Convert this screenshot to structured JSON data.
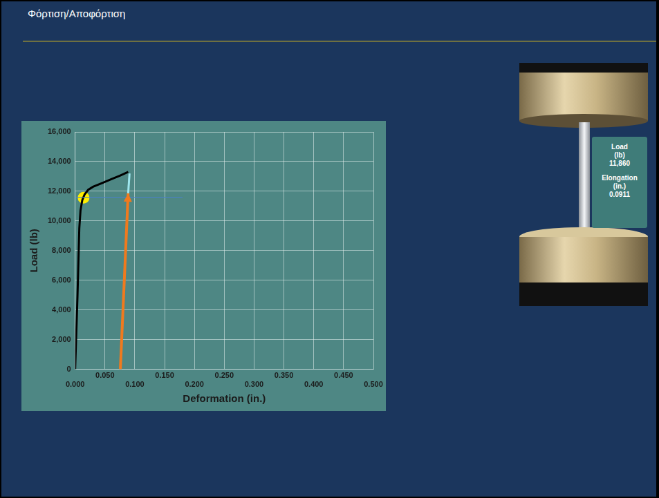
{
  "header": {
    "title": "Φόρτιση/Αποφόρτιση"
  },
  "readout": [
    {
      "label": "Load",
      "unit": "(lb)",
      "value": "11,860"
    },
    {
      "label": "Elongation",
      "unit": "(in.)",
      "value": "0.0911"
    }
  ],
  "chart_data": {
    "type": "line",
    "x_label": "Deformation (in.)",
    "y_label": "Load (lb)",
    "xlim": [
      0,
      0.5
    ],
    "xticks": [
      {
        "value": 0,
        "label": "0.000"
      },
      {
        "value": 0.05,
        "label": "0.050"
      },
      {
        "value": 0.1,
        "label": "0.100"
      },
      {
        "value": 0.15,
        "label": "0.150"
      },
      {
        "value": 0.2,
        "label": "0.200"
      },
      {
        "value": 0.25,
        "label": "0.250"
      },
      {
        "value": 0.3,
        "label": "0.300"
      },
      {
        "value": 0.35,
        "label": "0.350"
      },
      {
        "value": 0.4,
        "label": "0.400"
      },
      {
        "value": 0.45,
        "label": "0.450"
      },
      {
        "value": 0.5,
        "label": "0.500"
      }
    ],
    "ylim": [
      0,
      16000
    ],
    "yticks": [
      0,
      {
        "value": 2000,
        "label": "2,000"
      },
      {
        "value": 4000,
        "label": "4,000"
      },
      {
        "value": 6000,
        "label": "6,000"
      },
      {
        "value": 8000,
        "label": "8,000"
      },
      {
        "value": 10000,
        "label": "10,000"
      },
      {
        "value": 12000,
        "label": "12,000"
      },
      {
        "value": 14000,
        "label": "14,000"
      },
      {
        "value": 16000,
        "label": "16,000"
      }
    ],
    "grid": true,
    "series": [
      {
        "color": "#4a80c8",
        "line_style": "solid",
        "x": [
          0,
          0.18
        ],
        "values": [
          11600,
          11600
        ]
      },
      {
        "color": "#000000",
        "line_style": "solid",
        "x": [
          0,
          0.004,
          0.007,
          0.009,
          0.012,
          0.016,
          0.022,
          0.03,
          0.045,
          0.06,
          0.075,
          0.089
        ],
        "values": [
          0,
          5000,
          9500,
          10700,
          11400,
          11800,
          12100,
          12300,
          12550,
          12800,
          13050,
          13300
        ]
      },
      {
        "color": "#9ee6ee",
        "line_style": "solid",
        "x": [
          0.0889,
          0.0912
        ],
        "values": [
          11860,
          13200
        ]
      },
      {
        "color": "#f07a1e",
        "line_style": "solid",
        "marker": "arrow",
        "x": [
          0.0758,
          0.0889
        ],
        "values": [
          0,
          11860
        ]
      },
      {
        "color": "#ffee00",
        "line_style": "none",
        "marker": "circle",
        "x": [
          0.0142
        ],
        "values": [
          11560
        ]
      }
    ]
  }
}
